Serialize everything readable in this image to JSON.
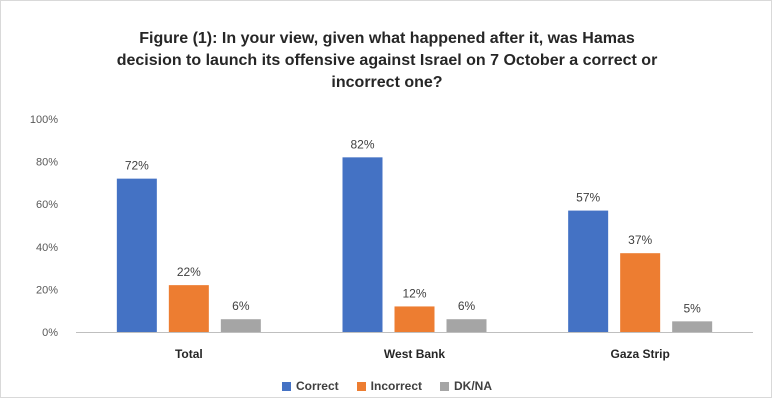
{
  "chart_data": {
    "type": "bar",
    "title_lines": [
      "Figure (1): In your view, given what happened after it, was Hamas",
      "decision to launch its offensive against Israel on 7 October a correct or",
      "incorrect one?"
    ],
    "categories": [
      "Total",
      "West Bank",
      "Gaza Strip"
    ],
    "series": [
      {
        "name": "Correct",
        "values": [
          72,
          82,
          57
        ],
        "labels": [
          "72%",
          "82%",
          "57%"
        ],
        "color": "#4472C4"
      },
      {
        "name": "Incorrect",
        "values": [
          22,
          12,
          37
        ],
        "labels": [
          "22%",
          "12%",
          "37%"
        ],
        "color": "#ED7D31"
      },
      {
        "name": "DK/NA",
        "values": [
          6,
          6,
          5
        ],
        "labels": [
          "6%",
          "6%",
          "5%"
        ],
        "color": "#A5A5A5"
      }
    ],
    "ylim": [
      0,
      100
    ],
    "yticks": [
      0,
      20,
      40,
      60,
      80,
      100
    ],
    "ytick_labels": [
      "0%",
      "20%",
      "40%",
      "60%",
      "80%",
      "100%"
    ],
    "grid": false,
    "legend_position": "bottom"
  }
}
